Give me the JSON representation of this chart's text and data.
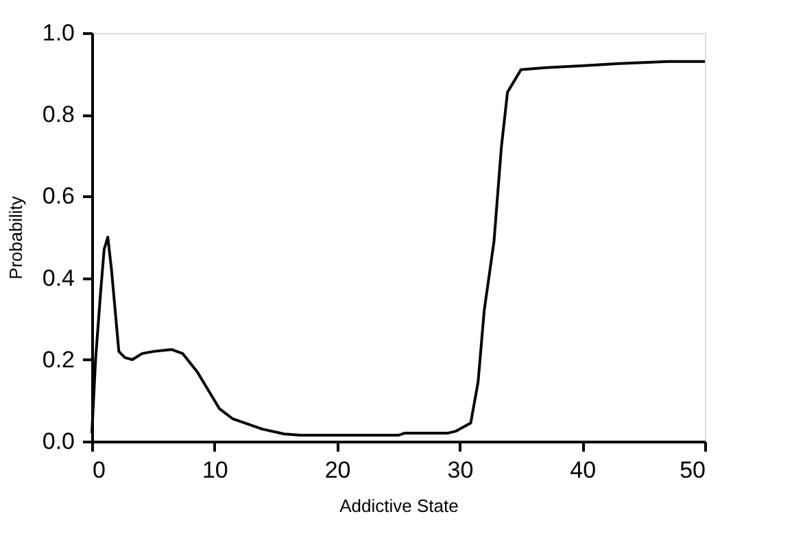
{
  "chart_data": {
    "type": "line",
    "xlabel": "Addictive State",
    "ylabel": "Probability",
    "x": [
      0,
      0.3,
      0.7,
      1.0,
      1.3,
      1.6,
      2.2,
      2.7,
      3.3,
      4.1,
      5.0,
      6.5,
      7.4,
      8.6,
      10.4,
      11.5,
      13.9,
      15.7,
      17,
      20,
      25,
      25.5,
      29,
      29.7,
      30.9,
      31.5,
      32,
      32.8,
      33.4,
      33.9,
      35,
      37,
      40.2,
      43,
      47,
      50
    ],
    "series": [
      {
        "color": "#000000",
        "values": [
          0.02,
          0.2,
          0.36,
          0.47,
          0.5,
          0.42,
          0.22,
          0.205,
          0.2,
          0.215,
          0.22,
          0.225,
          0.215,
          0.17,
          0.08,
          0.055,
          0.03,
          0.018,
          0.015,
          0.015,
          0.015,
          0.02,
          0.02,
          0.025,
          0.045,
          0.145,
          0.32,
          0.49,
          0.72,
          0.855,
          0.91,
          0.915,
          0.92,
          0.925,
          0.93,
          0.93
        ]
      }
    ],
    "xlim": [
      0,
      50
    ],
    "xticks": [
      0,
      10,
      20,
      30,
      40,
      50
    ],
    "ylim": [
      0,
      1
    ],
    "yticks": [
      {
        "value": 0,
        "label": "0.0"
      },
      {
        "value": 0.2,
        "label": "0.2"
      },
      {
        "value": 0.4,
        "label": "0.4"
      },
      {
        "value": 0.6,
        "label": "0.6"
      },
      {
        "value": 0.8,
        "label": "0.8"
      },
      {
        "value": 1,
        "label": "1.0"
      }
    ],
    "grid": false,
    "legend": false,
    "marker": "none",
    "line_style": "solid"
  }
}
